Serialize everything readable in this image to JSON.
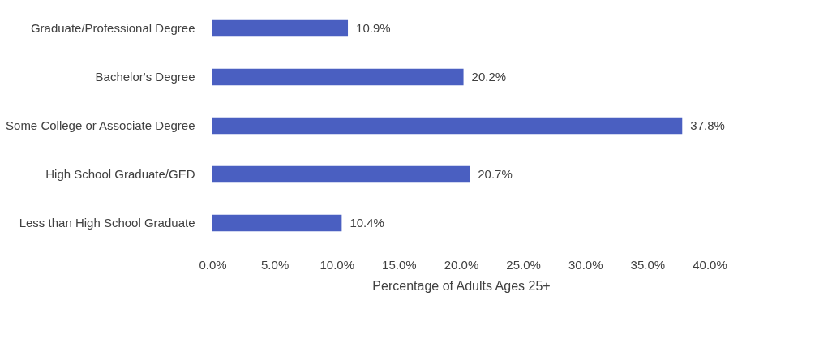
{
  "chart_data": {
    "type": "bar",
    "orientation": "horizontal",
    "xlabel": "Percentage of Adults Ages 25+",
    "categories": [
      "Graduate/Professional Degree",
      "Bachelor's Degree",
      "Some College or Associate Degree",
      "High School Graduate/GED",
      "Less than High School Graduate"
    ],
    "values": [
      10.9,
      20.2,
      37.8,
      20.7,
      10.4
    ],
    "value_labels": [
      "10.9%",
      "20.2%",
      "37.8%",
      "20.7%",
      "10.4%"
    ],
    "color": "#4a5fc1",
    "xlim": [
      0,
      40
    ],
    "xticks": [
      {
        "value": 0,
        "label": "0.0%"
      },
      {
        "value": 5,
        "label": "5.0%"
      },
      {
        "value": 10,
        "label": "10.0%"
      },
      {
        "value": 15,
        "label": "15.0%"
      },
      {
        "value": 20,
        "label": "20.0%"
      },
      {
        "value": 25,
        "label": "25.0%"
      },
      {
        "value": 30,
        "label": "30.0%"
      },
      {
        "value": 35,
        "label": "35.0%"
      },
      {
        "value": 40,
        "label": "40.0%"
      }
    ],
    "grid": false
  }
}
